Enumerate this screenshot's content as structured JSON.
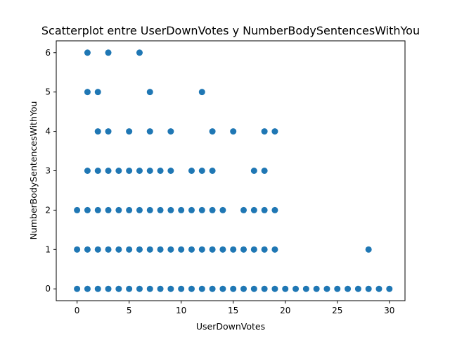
{
  "chart_data": {
    "type": "scatter",
    "title": "Scatterplot entre UserDownVotes y NumberBodySentencesWithYou",
    "xlabel": "UserDownVotes",
    "ylabel": "NumberBodySentencesWithYou",
    "xlim": [
      -2,
      31.5
    ],
    "ylim": [
      -0.3,
      6.3
    ],
    "xticks": [
      0,
      5,
      10,
      15,
      20,
      25,
      30
    ],
    "yticks": [
      0,
      1,
      2,
      3,
      4,
      5,
      6
    ],
    "grid": false,
    "color": "#1f77b4",
    "points": [
      [
        0,
        0
      ],
      [
        0,
        1
      ],
      [
        0,
        2
      ],
      [
        1,
        0
      ],
      [
        1,
        1
      ],
      [
        1,
        2
      ],
      [
        1,
        3
      ],
      [
        1,
        5
      ],
      [
        1,
        6
      ],
      [
        2,
        0
      ],
      [
        2,
        1
      ],
      [
        2,
        2
      ],
      [
        2,
        3
      ],
      [
        2,
        4
      ],
      [
        2,
        5
      ],
      [
        3,
        0
      ],
      [
        3,
        1
      ],
      [
        3,
        2
      ],
      [
        3,
        3
      ],
      [
        3,
        4
      ],
      [
        3,
        6
      ],
      [
        4,
        0
      ],
      [
        4,
        1
      ],
      [
        4,
        2
      ],
      [
        4,
        3
      ],
      [
        5,
        0
      ],
      [
        5,
        1
      ],
      [
        5,
        2
      ],
      [
        5,
        3
      ],
      [
        5,
        4
      ],
      [
        6,
        0
      ],
      [
        6,
        1
      ],
      [
        6,
        2
      ],
      [
        6,
        3
      ],
      [
        6,
        6
      ],
      [
        7,
        0
      ],
      [
        7,
        1
      ],
      [
        7,
        2
      ],
      [
        7,
        3
      ],
      [
        7,
        4
      ],
      [
        7,
        5
      ],
      [
        8,
        0
      ],
      [
        8,
        1
      ],
      [
        8,
        2
      ],
      [
        8,
        3
      ],
      [
        9,
        0
      ],
      [
        9,
        1
      ],
      [
        9,
        2
      ],
      [
        9,
        3
      ],
      [
        9,
        4
      ],
      [
        10,
        0
      ],
      [
        10,
        1
      ],
      [
        10,
        2
      ],
      [
        11,
        0
      ],
      [
        11,
        1
      ],
      [
        11,
        2
      ],
      [
        11,
        3
      ],
      [
        12,
        0
      ],
      [
        12,
        1
      ],
      [
        12,
        2
      ],
      [
        12,
        3
      ],
      [
        12,
        5
      ],
      [
        13,
        0
      ],
      [
        13,
        1
      ],
      [
        13,
        2
      ],
      [
        13,
        3
      ],
      [
        13,
        4
      ],
      [
        14,
        0
      ],
      [
        14,
        1
      ],
      [
        14,
        2
      ],
      [
        15,
        0
      ],
      [
        15,
        1
      ],
      [
        15,
        4
      ],
      [
        16,
        0
      ],
      [
        16,
        1
      ],
      [
        16,
        2
      ],
      [
        17,
        0
      ],
      [
        17,
        1
      ],
      [
        17,
        2
      ],
      [
        17,
        3
      ],
      [
        18,
        0
      ],
      [
        18,
        1
      ],
      [
        18,
        2
      ],
      [
        18,
        3
      ],
      [
        18,
        4
      ],
      [
        19,
        0
      ],
      [
        19,
        1
      ],
      [
        19,
        2
      ],
      [
        19,
        4
      ],
      [
        20,
        0
      ],
      [
        21,
        0
      ],
      [
        22,
        0
      ],
      [
        23,
        0
      ],
      [
        24,
        0
      ],
      [
        25,
        0
      ],
      [
        26,
        0
      ],
      [
        27,
        0
      ],
      [
        28,
        0
      ],
      [
        28,
        1
      ],
      [
        29,
        0
      ],
      [
        30,
        0
      ]
    ]
  }
}
